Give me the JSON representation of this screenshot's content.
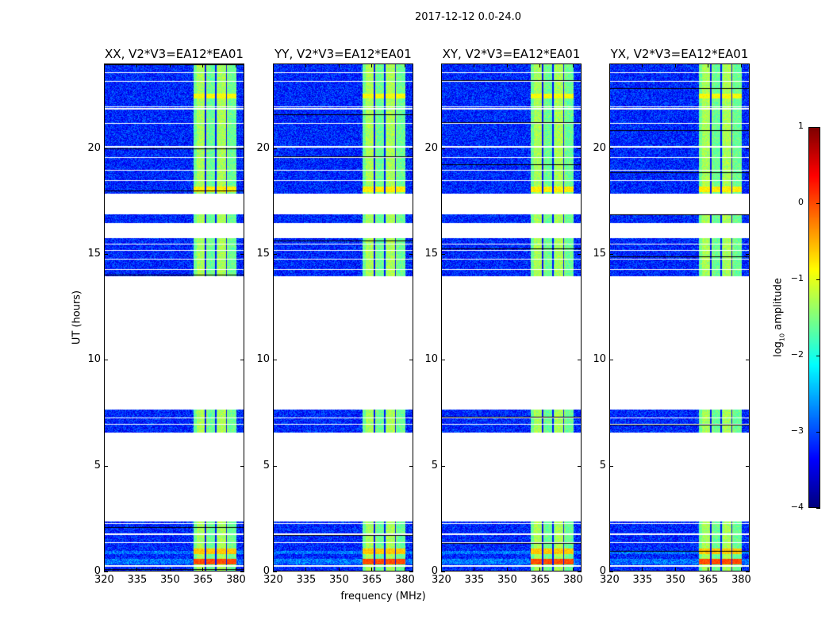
{
  "suptitle": "2017-12-12 0.0-24.0",
  "chart_data": {
    "type": "heatmap",
    "title": "2017-12-12 0.0-24.0",
    "xlabel": "frequency (MHz)",
    "ylabel": "UT (hours)",
    "xlim": [
      320,
      384
    ],
    "ylim": [
      0,
      24
    ],
    "xticks": [
      "320",
      "335",
      "350",
      "365",
      "380"
    ],
    "xtick_values": [
      320,
      335,
      350,
      365,
      380
    ],
    "yticks": [
      "0",
      "5",
      "10",
      "15",
      "20"
    ],
    "ytick_values": [
      0,
      5,
      10,
      15,
      20
    ],
    "panels": [
      {
        "title": "XX, V2*V3=EA12*EA01"
      },
      {
        "title": "YY, V2*V3=EA12*EA01"
      },
      {
        "title": "XY, V2*V3=EA12*EA01"
      },
      {
        "title": "YX, V2*V3=EA12*EA01"
      }
    ],
    "data_segments_hours": [
      [
        0,
        2.4
      ],
      [
        6.6,
        7.7
      ],
      [
        14.0,
        15.8
      ],
      [
        16.5,
        16.9
      ],
      [
        17.9,
        24.0
      ]
    ],
    "background_log_amplitude": -3.2,
    "bright_band_mhz": [
      360.5,
      380.0
    ],
    "bright_band_log_amplitude": -1.5,
    "subband_edges_mhz": [
      366.0,
      370.5,
      375.5
    ],
    "strong_rows": [
      {
        "hour": 0.5,
        "log_amplitude": 0.0
      },
      {
        "hour": 1.0,
        "log_amplitude": -0.6
      },
      {
        "hour": 18.1,
        "log_amplitude": -0.8
      },
      {
        "hour": 22.5,
        "log_amplitude": -0.9
      }
    ],
    "flagged_rows_hours": [
      0.3,
      1.4,
      1.8,
      2.3,
      7.0,
      7.3,
      14.3,
      14.8,
      15.2,
      15.5,
      18.5,
      19.0,
      19.6,
      20.1,
      21.2,
      21.9,
      22.0,
      23.2,
      23.6
    ],
    "colorbar": {
      "label": "log10 amplitude",
      "label_main": "log",
      "label_sub": "10",
      "label_rest": " amplitude",
      "range": [
        -4,
        1
      ],
      "ticks": [
        "−4",
        "−3",
        "−2",
        "−1",
        "0",
        "1"
      ],
      "tick_values": [
        -4,
        -3,
        -2,
        -1,
        0,
        1
      ],
      "colormap": "jet"
    }
  }
}
